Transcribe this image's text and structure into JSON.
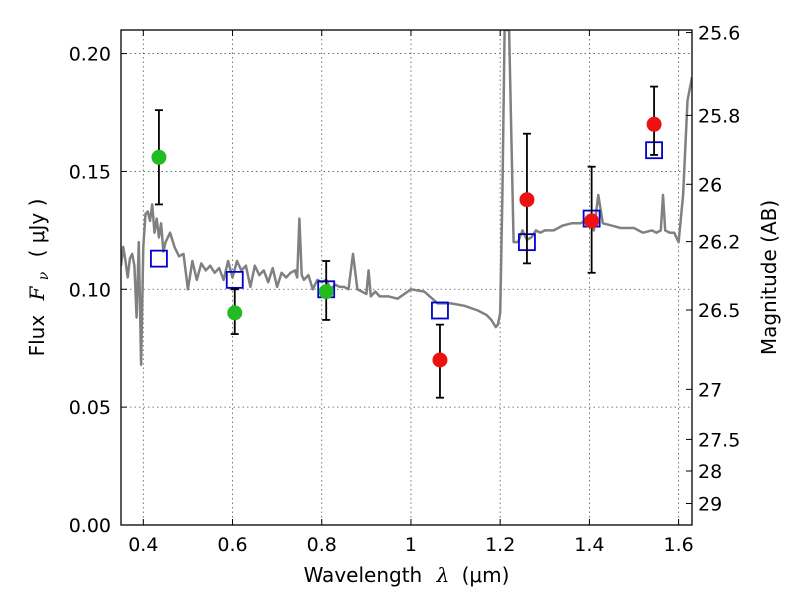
{
  "chart_data": {
    "type": "scatter",
    "xlabel": {
      "prefix": "Wavelength",
      "symbol": "λ",
      "unit": "(μm)"
    },
    "ylabel": {
      "prefix": "Flux",
      "symbol": "F",
      "subscript": "ν",
      "unit": "(  μJy )"
    },
    "ylabel_right": "Magnitude (AB)",
    "xlim": [
      0.35,
      1.63
    ],
    "ylim": [
      0.0,
      0.21
    ],
    "grid": true,
    "x_ticks": [
      {
        "value": 0.4,
        "label": "0.4"
      },
      {
        "value": 0.6,
        "label": "0.6"
      },
      {
        "value": 0.8,
        "label": "0.8"
      },
      {
        "value": 1.0,
        "label": "1"
      },
      {
        "value": 1.2,
        "label": "1.2"
      },
      {
        "value": 1.4,
        "label": "1.4"
      },
      {
        "value": 1.6,
        "label": "1.6"
      }
    ],
    "y_ticks": [
      {
        "value": 0.0,
        "label": "0.00"
      },
      {
        "value": 0.05,
        "label": "0.05"
      },
      {
        "value": 0.1,
        "label": "0.10"
      },
      {
        "value": 0.15,
        "label": "0.15"
      },
      {
        "value": 0.2,
        "label": "0.20"
      }
    ],
    "right_ticks": [
      {
        "value": 25.6,
        "label": "25.6"
      },
      {
        "value": 25.8,
        "label": "25.8"
      },
      {
        "value": 26.0,
        "label": "26"
      },
      {
        "value": 26.2,
        "label": "26.2"
      },
      {
        "value": 26.5,
        "label": "26.5"
      },
      {
        "value": 27.0,
        "label": "27"
      },
      {
        "value": 27.5,
        "label": "27.5"
      },
      {
        "value": 28.0,
        "label": "28"
      },
      {
        "value": 29.0,
        "label": "29"
      }
    ],
    "colors": {
      "model": "#808080",
      "green": "#22bb22",
      "red": "#ee1111",
      "square": "#0000cc",
      "errorbar": "#000000"
    },
    "series": [
      {
        "kind": "model-spectrum",
        "x": [
          0.35,
          0.355,
          0.36,
          0.365,
          0.37,
          0.375,
          0.38,
          0.385,
          0.39,
          0.395,
          0.4,
          0.405,
          0.41,
          0.415,
          0.42,
          0.425,
          0.43,
          0.435,
          0.44,
          0.445,
          0.45,
          0.46,
          0.47,
          0.48,
          0.49,
          0.5,
          0.51,
          0.52,
          0.53,
          0.54,
          0.55,
          0.56,
          0.57,
          0.58,
          0.59,
          0.6,
          0.61,
          0.62,
          0.63,
          0.64,
          0.65,
          0.66,
          0.67,
          0.68,
          0.69,
          0.7,
          0.71,
          0.72,
          0.73,
          0.74,
          0.745,
          0.75,
          0.755,
          0.76,
          0.77,
          0.78,
          0.79,
          0.8,
          0.81,
          0.82,
          0.83,
          0.84,
          0.85,
          0.86,
          0.87,
          0.88,
          0.89,
          0.9,
          0.905,
          0.91,
          0.92,
          0.93,
          0.95,
          0.97,
          1.0,
          1.03,
          1.06,
          1.09,
          1.12,
          1.15,
          1.17,
          1.18,
          1.19,
          1.195,
          1.2,
          1.205,
          1.21,
          1.22,
          1.23,
          1.24,
          1.25,
          1.26,
          1.27,
          1.28,
          1.29,
          1.3,
          1.32,
          1.34,
          1.36,
          1.38,
          1.4,
          1.41,
          1.42,
          1.43,
          1.45,
          1.47,
          1.5,
          1.52,
          1.54,
          1.55,
          1.56,
          1.565,
          1.57,
          1.58,
          1.59,
          1.6,
          1.61,
          1.62,
          1.63
        ],
        "y": [
          0.11,
          0.118,
          0.112,
          0.105,
          0.113,
          0.115,
          0.11,
          0.088,
          0.12,
          0.068,
          0.118,
          0.132,
          0.133,
          0.129,
          0.136,
          0.124,
          0.13,
          0.122,
          0.128,
          0.116,
          0.12,
          0.124,
          0.118,
          0.114,
          0.115,
          0.1,
          0.112,
          0.104,
          0.111,
          0.108,
          0.11,
          0.107,
          0.109,
          0.104,
          0.112,
          0.105,
          0.112,
          0.108,
          0.11,
          0.101,
          0.11,
          0.106,
          0.108,
          0.103,
          0.109,
          0.101,
          0.107,
          0.105,
          0.107,
          0.108,
          0.105,
          0.13,
          0.106,
          0.104,
          0.106,
          0.1,
          0.104,
          0.103,
          0.104,
          0.1,
          0.102,
          0.101,
          0.101,
          0.1,
          0.115,
          0.1,
          0.099,
          0.098,
          0.108,
          0.097,
          0.099,
          0.097,
          0.097,
          0.096,
          0.1,
          0.099,
          0.094,
          0.094,
          0.093,
          0.091,
          0.089,
          0.087,
          0.084,
          0.085,
          0.09,
          0.14,
          0.21,
          0.21,
          0.12,
          0.12,
          0.125,
          0.121,
          0.122,
          0.125,
          0.124,
          0.125,
          0.125,
          0.127,
          0.128,
          0.128,
          0.13,
          0.125,
          0.14,
          0.128,
          0.127,
          0.126,
          0.126,
          0.124,
          0.125,
          0.124,
          0.125,
          0.14,
          0.125,
          0.124,
          0.124,
          0.12,
          0.14,
          0.18,
          0.19
        ]
      },
      {
        "kind": "green-points",
        "points": [
          {
            "x": 0.435,
            "y": 0.156,
            "err_lo": 0.136,
            "err_hi": 0.176
          },
          {
            "x": 0.605,
            "y": 0.09,
            "err_lo": 0.081,
            "err_hi": 0.1
          },
          {
            "x": 0.81,
            "y": 0.099,
            "err_lo": 0.087,
            "err_hi": 0.112
          }
        ]
      },
      {
        "kind": "red-points",
        "points": [
          {
            "x": 1.065,
            "y": 0.07,
            "err_lo": 0.054,
            "err_hi": 0.085
          },
          {
            "x": 1.26,
            "y": 0.138,
            "err_lo": 0.111,
            "err_hi": 0.166
          },
          {
            "x": 1.405,
            "y": 0.129,
            "err_lo": 0.107,
            "err_hi": 0.152
          },
          {
            "x": 1.545,
            "y": 0.17,
            "err_lo": 0.157,
            "err_hi": 0.186
          }
        ]
      },
      {
        "kind": "model-squares",
        "points": [
          {
            "x": 0.435,
            "y": 0.113
          },
          {
            "x": 0.605,
            "y": 0.104
          },
          {
            "x": 0.81,
            "y": 0.1
          },
          {
            "x": 1.065,
            "y": 0.091
          },
          {
            "x": 1.26,
            "y": 0.12
          },
          {
            "x": 1.405,
            "y": 0.13
          },
          {
            "x": 1.545,
            "y": 0.159
          }
        ]
      }
    ]
  }
}
